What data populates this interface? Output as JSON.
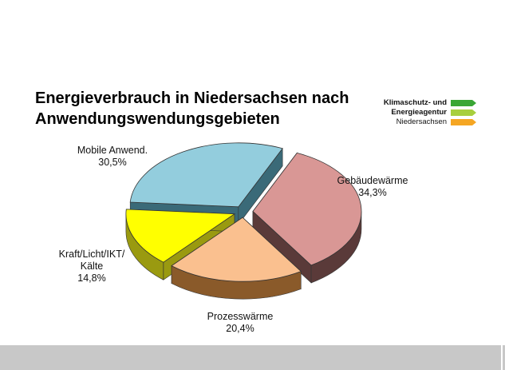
{
  "title": {
    "line1": "Energieverbrauch in Niedersachsen nach",
    "line2": "Anwendungswendungsgebieten"
  },
  "logo": {
    "line1": "Klimaschutz- und",
    "line2": "Energieagentur",
    "line3": "Niedersachsen",
    "colors": [
      "#3aa635",
      "#a8cf3e",
      "#f5a623"
    ]
  },
  "chart_data": {
    "type": "pie",
    "categories": [
      "Gebäudewärme",
      "Prozesswärme",
      "Kraft/Licht/IKT/Kälte",
      "Mobile Anwend."
    ],
    "values": [
      34.3,
      20.4,
      14.8,
      30.5
    ],
    "value_labels": [
      "34,3%",
      "20,4%",
      "14,8%",
      "30,5%"
    ],
    "colors": [
      "#d99795",
      "#fac08f",
      "#ffff00",
      "#93cddd"
    ],
    "side_colors": [
      "#5a3a39",
      "#8a5a2a",
      "#9a9a10",
      "#3a6a78"
    ],
    "title": "",
    "legend": "none",
    "exploded": true
  }
}
